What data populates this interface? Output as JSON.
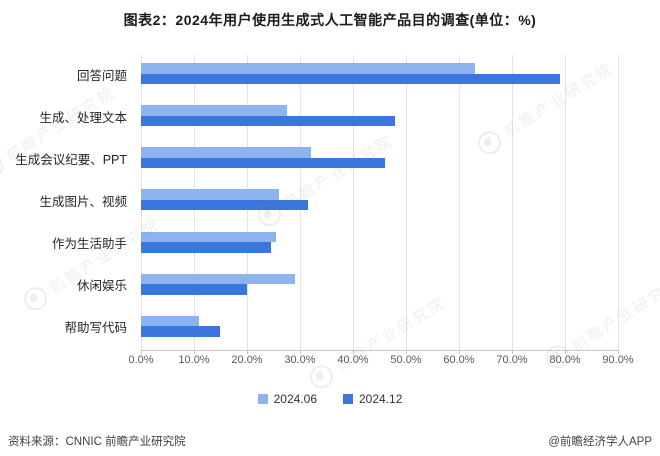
{
  "title": "图表2：2024年用户使用生成式人工智能产品目的调查(单位：%)",
  "chart_data": {
    "type": "bar",
    "orientation": "horizontal",
    "title": "图表2：2024年用户使用生成式人工智能产品目的调查(单位：%)",
    "unit": "%",
    "categories": [
      "回答问题",
      "生成、处理文本",
      "生成会议纪要、PPT",
      "生成图片、视频",
      "作为生活助手",
      "休闲娱乐",
      "帮助写代码"
    ],
    "series": [
      {
        "name": "2024.06",
        "color": "#8EB4F0",
        "values": [
          63,
          27.5,
          32,
          26,
          25.5,
          29,
          11
        ]
      },
      {
        "name": "2024.12",
        "color": "#3B76DE",
        "values": [
          79,
          48,
          46,
          31.5,
          24.5,
          20,
          15
        ]
      }
    ],
    "xlim": [
      0,
      90
    ],
    "x_ticks": [
      "0.0%",
      "10.0%",
      "20.0%",
      "30.0%",
      "40.0%",
      "50.0%",
      "60.0%",
      "70.0%",
      "80.0%",
      "90.0%"
    ],
    "grid": true,
    "legend_position": "bottom"
  },
  "legend": {
    "items": [
      "2024.06",
      "2024.12"
    ]
  },
  "footer": {
    "source": "资料来源：CNNIC 前瞻产业研究院",
    "credit": "@前瞻经济学人APP"
  },
  "watermark": {
    "text": "前瞻产业研究院"
  },
  "colors": {
    "series_2024_06": "#8EB4F0",
    "series_2024_12": "#3B76DE",
    "gridline": "#e3e3e3",
    "axis_text": "#595959"
  }
}
